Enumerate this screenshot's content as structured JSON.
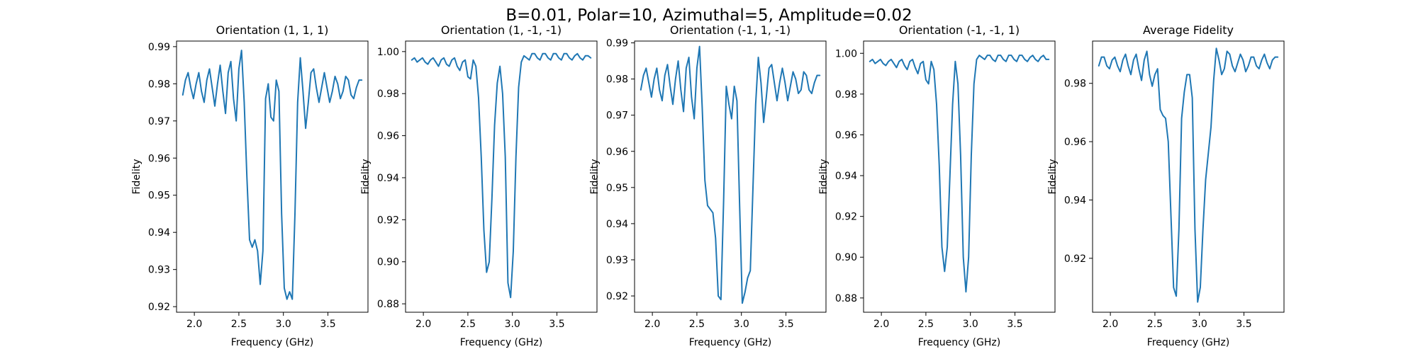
{
  "figure": {
    "suptitle": "B=0.01, Polar=10, Azimuthal=5, Amplitude=0.02"
  },
  "colors": {
    "line": "#1f77b4"
  },
  "chart_data": [
    {
      "type": "line",
      "title": "Orientation (1, 1, 1)",
      "xlabel": "Frequency (GHz)",
      "ylabel": "Fidelity",
      "xlim": [
        1.8,
        3.95
      ],
      "ylim": [
        0.9185,
        0.9915
      ],
      "xticks": [
        2.0,
        2.5,
        3.0,
        3.5
      ],
      "xtick_labels": [
        "2.0",
        "2.5",
        "3.0",
        "3.5"
      ],
      "yticks": [
        0.92,
        0.93,
        0.94,
        0.95,
        0.96,
        0.97,
        0.98,
        0.99
      ],
      "ytick_labels": [
        "0.92",
        "0.93",
        "0.94",
        "0.95",
        "0.96",
        "0.97",
        "0.98",
        "0.99"
      ],
      "series": [
        {
          "x": [
            1.87,
            1.9,
            1.93,
            1.96,
            1.99,
            2.02,
            2.05,
            2.08,
            2.11,
            2.14,
            2.17,
            2.2,
            2.23,
            2.26,
            2.29,
            2.32,
            2.35,
            2.38,
            2.41,
            2.44,
            2.47,
            2.5,
            2.53,
            2.56,
            2.59,
            2.62,
            2.65,
            2.68,
            2.71,
            2.74,
            2.77,
            2.8,
            2.83,
            2.86,
            2.89,
            2.92,
            2.95,
            2.98,
            3.01,
            3.04,
            3.07,
            3.1,
            3.13,
            3.16,
            3.19,
            3.22,
            3.25,
            3.28,
            3.31,
            3.34,
            3.37,
            3.4,
            3.43,
            3.46,
            3.49,
            3.52,
            3.55,
            3.58,
            3.61,
            3.64,
            3.67,
            3.7,
            3.73,
            3.76,
            3.79,
            3.82,
            3.85,
            3.88
          ],
          "y": [
            0.977,
            0.981,
            0.983,
            0.979,
            0.976,
            0.98,
            0.983,
            0.978,
            0.975,
            0.981,
            0.984,
            0.979,
            0.974,
            0.98,
            0.985,
            0.978,
            0.972,
            0.983,
            0.986,
            0.976,
            0.97,
            0.984,
            0.989,
            0.975,
            0.955,
            0.938,
            0.936,
            0.938,
            0.935,
            0.926,
            0.935,
            0.976,
            0.98,
            0.971,
            0.97,
            0.981,
            0.978,
            0.945,
            0.925,
            0.922,
            0.924,
            0.922,
            0.945,
            0.975,
            0.987,
            0.978,
            0.968,
            0.975,
            0.983,
            0.984,
            0.979,
            0.975,
            0.979,
            0.983,
            0.979,
            0.975,
            0.978,
            0.982,
            0.98,
            0.976,
            0.978,
            0.982,
            0.981,
            0.977,
            0.976,
            0.979,
            0.981,
            0.981
          ]
        }
      ]
    },
    {
      "type": "line",
      "title": "Orientation (1, -1, -1)",
      "xlabel": "Frequency (GHz)",
      "ylabel": "Fidelity",
      "xlim": [
        1.8,
        3.95
      ],
      "ylim": [
        0.876,
        1.005
      ],
      "xticks": [
        2.0,
        2.5,
        3.0,
        3.5
      ],
      "xtick_labels": [
        "2.0",
        "2.5",
        "3.0",
        "3.5"
      ],
      "yticks": [
        0.88,
        0.9,
        0.92,
        0.94,
        0.96,
        0.98,
        1.0
      ],
      "ytick_labels": [
        "0.88",
        "0.90",
        "0.92",
        "0.94",
        "0.96",
        "0.98",
        "1.00"
      ],
      "series": [
        {
          "x": [
            1.87,
            1.9,
            1.93,
            1.96,
            1.99,
            2.02,
            2.05,
            2.08,
            2.11,
            2.14,
            2.17,
            2.2,
            2.23,
            2.26,
            2.29,
            2.32,
            2.35,
            2.38,
            2.41,
            2.44,
            2.47,
            2.5,
            2.53,
            2.56,
            2.59,
            2.62,
            2.65,
            2.68,
            2.71,
            2.74,
            2.77,
            2.8,
            2.83,
            2.86,
            2.89,
            2.92,
            2.95,
            2.98,
            3.01,
            3.04,
            3.07,
            3.1,
            3.13,
            3.16,
            3.19,
            3.22,
            3.25,
            3.28,
            3.31,
            3.34,
            3.37,
            3.4,
            3.43,
            3.46,
            3.49,
            3.52,
            3.55,
            3.58,
            3.61,
            3.64,
            3.67,
            3.7,
            3.73,
            3.76,
            3.79,
            3.82,
            3.85,
            3.88
          ],
          "y": [
            0.996,
            0.997,
            0.995,
            0.996,
            0.997,
            0.995,
            0.994,
            0.996,
            0.997,
            0.995,
            0.993,
            0.996,
            0.997,
            0.994,
            0.993,
            0.996,
            0.997,
            0.993,
            0.991,
            0.995,
            0.996,
            0.988,
            0.987,
            0.996,
            0.993,
            0.978,
            0.95,
            0.915,
            0.895,
            0.9,
            0.93,
            0.965,
            0.985,
            0.993,
            0.98,
            0.95,
            0.89,
            0.883,
            0.905,
            0.95,
            0.983,
            0.995,
            0.998,
            0.997,
            0.996,
            0.999,
            0.999,
            0.997,
            0.996,
            0.999,
            0.999,
            0.997,
            0.996,
            0.999,
            0.999,
            0.997,
            0.996,
            0.999,
            0.999,
            0.997,
            0.996,
            0.998,
            0.999,
            0.997,
            0.996,
            0.998,
            0.998,
            0.997
          ]
        }
      ]
    },
    {
      "type": "line",
      "title": "Orientation (-1, 1, -1)",
      "xlabel": "Frequency (GHz)",
      "ylabel": "Fidelity",
      "xlim": [
        1.8,
        3.95
      ],
      "ylim": [
        0.9155,
        0.9905
      ],
      "xticks": [
        2.0,
        2.5,
        3.0,
        3.5
      ],
      "xtick_labels": [
        "2.0",
        "2.5",
        "3.0",
        "3.5"
      ],
      "yticks": [
        0.92,
        0.93,
        0.94,
        0.95,
        0.96,
        0.97,
        0.98,
        0.99
      ],
      "ytick_labels": [
        "0.92",
        "0.93",
        "0.94",
        "0.95",
        "0.96",
        "0.97",
        "0.98",
        "0.99"
      ],
      "series": [
        {
          "x": [
            1.87,
            1.9,
            1.93,
            1.96,
            1.99,
            2.02,
            2.05,
            2.08,
            2.11,
            2.14,
            2.17,
            2.2,
            2.23,
            2.26,
            2.29,
            2.32,
            2.35,
            2.38,
            2.41,
            2.44,
            2.47,
            2.5,
            2.53,
            2.56,
            2.59,
            2.62,
            2.65,
            2.68,
            2.71,
            2.74,
            2.77,
            2.8,
            2.83,
            2.86,
            2.89,
            2.92,
            2.95,
            2.98,
            3.01,
            3.04,
            3.07,
            3.1,
            3.13,
            3.16,
            3.19,
            3.22,
            3.25,
            3.28,
            3.31,
            3.34,
            3.37,
            3.4,
            3.43,
            3.46,
            3.49,
            3.52,
            3.55,
            3.58,
            3.61,
            3.64,
            3.67,
            3.7,
            3.73,
            3.76,
            3.79,
            3.82,
            3.85,
            3.88
          ],
          "y": [
            0.977,
            0.981,
            0.983,
            0.979,
            0.975,
            0.98,
            0.983,
            0.977,
            0.974,
            0.981,
            0.984,
            0.978,
            0.973,
            0.98,
            0.985,
            0.977,
            0.971,
            0.983,
            0.986,
            0.975,
            0.969,
            0.983,
            0.989,
            0.972,
            0.952,
            0.945,
            0.944,
            0.943,
            0.936,
            0.92,
            0.919,
            0.946,
            0.978,
            0.973,
            0.969,
            0.978,
            0.974,
            0.945,
            0.918,
            0.921,
            0.925,
            0.927,
            0.95,
            0.973,
            0.986,
            0.979,
            0.968,
            0.975,
            0.983,
            0.984,
            0.979,
            0.974,
            0.979,
            0.983,
            0.979,
            0.974,
            0.978,
            0.982,
            0.98,
            0.976,
            0.977,
            0.982,
            0.981,
            0.977,
            0.976,
            0.979,
            0.981,
            0.981
          ]
        }
      ]
    },
    {
      "type": "line",
      "title": "Orientation (-1, -1, 1)",
      "xlabel": "Frequency (GHz)",
      "ylabel": "Fidelity",
      "xlim": [
        1.8,
        3.95
      ],
      "ylim": [
        0.873,
        1.006
      ],
      "xticks": [
        2.0,
        2.5,
        3.0,
        3.5
      ],
      "xtick_labels": [
        "2.0",
        "2.5",
        "3.0",
        "3.5"
      ],
      "yticks": [
        0.88,
        0.9,
        0.92,
        0.94,
        0.96,
        0.98,
        1.0
      ],
      "ytick_labels": [
        "0.88",
        "0.90",
        "0.92",
        "0.94",
        "0.96",
        "0.98",
        "1.00"
      ],
      "series": [
        {
          "x": [
            1.87,
            1.9,
            1.93,
            1.96,
            1.99,
            2.02,
            2.05,
            2.08,
            2.11,
            2.14,
            2.17,
            2.2,
            2.23,
            2.26,
            2.29,
            2.32,
            2.35,
            2.38,
            2.41,
            2.44,
            2.47,
            2.5,
            2.53,
            2.56,
            2.59,
            2.62,
            2.65,
            2.68,
            2.71,
            2.74,
            2.77,
            2.8,
            2.83,
            2.86,
            2.89,
            2.92,
            2.95,
            2.98,
            3.01,
            3.04,
            3.07,
            3.1,
            3.13,
            3.16,
            3.19,
            3.22,
            3.25,
            3.28,
            3.31,
            3.34,
            3.37,
            3.4,
            3.43,
            3.46,
            3.49,
            3.52,
            3.55,
            3.58,
            3.61,
            3.64,
            3.67,
            3.7,
            3.73,
            3.76,
            3.79,
            3.82,
            3.85,
            3.88
          ],
          "y": [
            0.996,
            0.997,
            0.995,
            0.996,
            0.997,
            0.995,
            0.994,
            0.996,
            0.997,
            0.995,
            0.993,
            0.996,
            0.997,
            0.994,
            0.992,
            0.996,
            0.997,
            0.993,
            0.99,
            0.995,
            0.996,
            0.987,
            0.985,
            0.996,
            0.992,
            0.975,
            0.945,
            0.905,
            0.893,
            0.905,
            0.94,
            0.975,
            0.996,
            0.985,
            0.95,
            0.9,
            0.883,
            0.9,
            0.95,
            0.985,
            0.997,
            0.999,
            0.998,
            0.997,
            0.999,
            0.999,
            0.997,
            0.996,
            0.999,
            0.999,
            0.997,
            0.996,
            0.999,
            0.999,
            0.997,
            0.996,
            0.999,
            0.999,
            0.997,
            0.996,
            0.998,
            0.999,
            0.997,
            0.996,
            0.998,
            0.999,
            0.997,
            0.997
          ]
        }
      ]
    },
    {
      "type": "line",
      "title": "Average Fidelity",
      "xlabel": "Frequency (GHz)",
      "ylabel": "Fidelity",
      "xlim": [
        1.8,
        3.95
      ],
      "ylim": [
        0.9015,
        0.9945
      ],
      "xticks": [
        2.0,
        2.5,
        3.0,
        3.5
      ],
      "xtick_labels": [
        "2.0",
        "2.5",
        "3.0",
        "3.5"
      ],
      "yticks": [
        0.92,
        0.94,
        0.96,
        0.98
      ],
      "ytick_labels": [
        "0.92",
        "0.94",
        "0.96",
        "0.98"
      ],
      "series": [
        {
          "x": [
            1.87,
            1.9,
            1.93,
            1.96,
            1.99,
            2.02,
            2.05,
            2.08,
            2.11,
            2.14,
            2.17,
            2.2,
            2.23,
            2.26,
            2.29,
            2.32,
            2.35,
            2.38,
            2.41,
            2.44,
            2.47,
            2.5,
            2.53,
            2.56,
            2.59,
            2.62,
            2.65,
            2.68,
            2.71,
            2.74,
            2.77,
            2.8,
            2.83,
            2.86,
            2.89,
            2.92,
            2.95,
            2.98,
            3.01,
            3.04,
            3.07,
            3.1,
            3.13,
            3.16,
            3.19,
            3.22,
            3.25,
            3.28,
            3.31,
            3.34,
            3.37,
            3.4,
            3.43,
            3.46,
            3.49,
            3.52,
            3.55,
            3.58,
            3.61,
            3.64,
            3.67,
            3.7,
            3.73,
            3.76,
            3.79,
            3.82,
            3.85,
            3.88
          ],
          "y": [
            0.986,
            0.989,
            0.989,
            0.986,
            0.985,
            0.988,
            0.989,
            0.986,
            0.984,
            0.988,
            0.99,
            0.986,
            0.983,
            0.988,
            0.99,
            0.985,
            0.981,
            0.988,
            0.991,
            0.983,
            0.979,
            0.983,
            0.985,
            0.971,
            0.969,
            0.968,
            0.96,
            0.935,
            0.91,
            0.907,
            0.93,
            0.968,
            0.977,
            0.983,
            0.983,
            0.975,
            0.93,
            0.905,
            0.91,
            0.93,
            0.947,
            0.956,
            0.965,
            0.981,
            0.992,
            0.988,
            0.983,
            0.985,
            0.991,
            0.99,
            0.986,
            0.984,
            0.987,
            0.99,
            0.988,
            0.984,
            0.986,
            0.989,
            0.989,
            0.986,
            0.985,
            0.988,
            0.99,
            0.987,
            0.985,
            0.988,
            0.989,
            0.989
          ]
        }
      ]
    }
  ]
}
